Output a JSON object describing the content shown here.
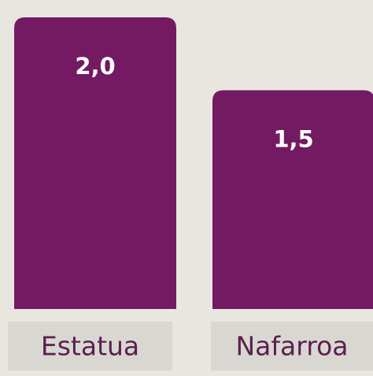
{
  "chart_data": {
    "type": "bar",
    "categories": [
      "Estatua",
      "Nafarroa"
    ],
    "values": [
      2.0,
      1.5
    ],
    "value_labels": [
      "2,0",
      "1,5"
    ],
    "color": "#731a62"
  }
}
